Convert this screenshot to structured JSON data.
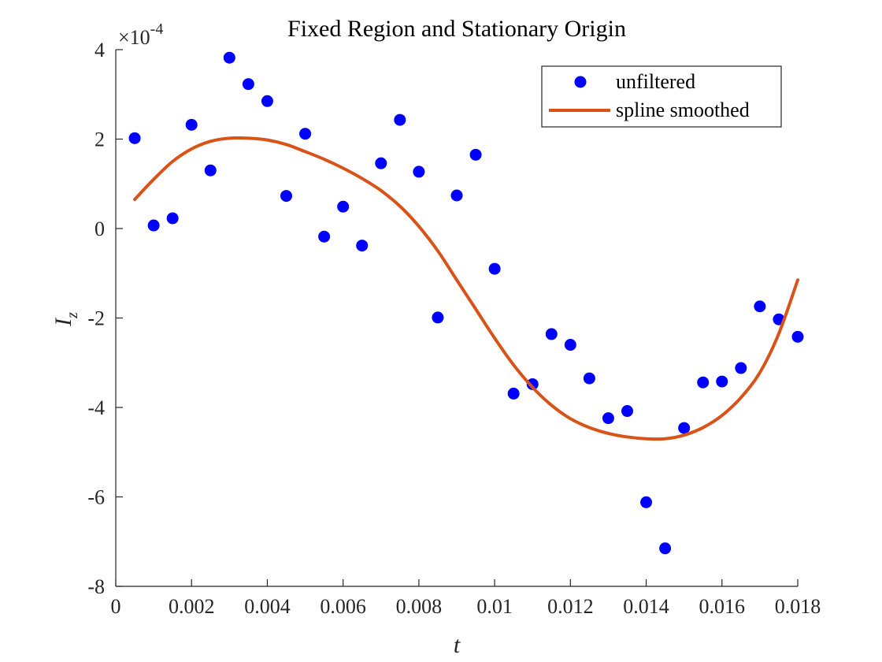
{
  "chart_data": {
    "type": "scatter",
    "title": "Fixed Region and Stationary Origin",
    "xlabel": "t",
    "ylabel_main": "I",
    "ylabel_sub": "z",
    "y_exponent_prefix": "×10",
    "y_exponent": "-4",
    "xlim": [
      0,
      0.018
    ],
    "ylim": [
      -8,
      4
    ],
    "x_ticks": [
      0,
      0.002,
      0.004,
      0.006,
      0.008,
      0.01,
      0.012,
      0.014,
      0.016,
      0.018
    ],
    "x_tick_labels": [
      "0",
      "0.002",
      "0.004",
      "0.006",
      "0.008",
      "0.01",
      "0.012",
      "0.014",
      "0.016",
      "0.018"
    ],
    "y_ticks": [
      -8,
      -6,
      -4,
      -2,
      0,
      2,
      4
    ],
    "y_tick_labels": [
      "-8",
      "-6",
      "-4",
      "-2",
      "0",
      "2",
      "4"
    ],
    "grid": false,
    "legend_position": "top-right",
    "series": [
      {
        "name": "unfiltered",
        "kind": "scatter",
        "color": "#0000ff",
        "x": [
          0.0005,
          0.001,
          0.0015,
          0.002,
          0.0025,
          0.003,
          0.0035,
          0.004,
          0.0045,
          0.005,
          0.0055,
          0.006,
          0.0065,
          0.007,
          0.0075,
          0.008,
          0.0085,
          0.009,
          0.0095,
          0.01,
          0.0105,
          0.011,
          0.0115,
          0.012,
          0.0125,
          0.013,
          0.0135,
          0.014,
          0.0145,
          0.015,
          0.0155,
          0.016,
          0.0165,
          0.017,
          0.0175,
          0.018
        ],
        "y": [
          2.02,
          0.07,
          0.23,
          2.32,
          1.3,
          3.82,
          3.23,
          2.85,
          0.73,
          2.12,
          -0.18,
          0.49,
          -0.38,
          1.46,
          2.43,
          1.27,
          -1.99,
          0.74,
          1.65,
          -0.9,
          -3.69,
          -3.48,
          -2.36,
          -2.6,
          -3.35,
          -4.24,
          -4.08,
          -6.12,
          -7.15,
          -4.46,
          -3.44,
          -3.42,
          -3.12,
          -1.74,
          -2.03,
          -2.42
        ]
      },
      {
        "name": "spline smoothed",
        "kind": "line",
        "color": "#d95319",
        "x": [
          0.0005,
          0.001,
          0.0015,
          0.002,
          0.0025,
          0.003,
          0.0035,
          0.004,
          0.0045,
          0.005,
          0.0055,
          0.006,
          0.0065,
          0.007,
          0.0075,
          0.008,
          0.0085,
          0.009,
          0.0095,
          0.01,
          0.0105,
          0.011,
          0.0115,
          0.012,
          0.0125,
          0.013,
          0.0135,
          0.014,
          0.0145,
          0.015,
          0.0155,
          0.016,
          0.0165,
          0.017,
          0.0175,
          0.018
        ],
        "y": [
          0.65,
          1.1,
          1.5,
          1.78,
          1.95,
          2.02,
          2.02,
          1.98,
          1.88,
          1.72,
          1.55,
          1.35,
          1.12,
          0.85,
          0.5,
          0.05,
          -0.5,
          -1.15,
          -1.8,
          -2.45,
          -3.05,
          -3.55,
          -3.95,
          -4.25,
          -4.45,
          -4.58,
          -4.66,
          -4.7,
          -4.7,
          -4.62,
          -4.45,
          -4.18,
          -3.78,
          -3.22,
          -2.35,
          -1.15
        ]
      }
    ]
  }
}
